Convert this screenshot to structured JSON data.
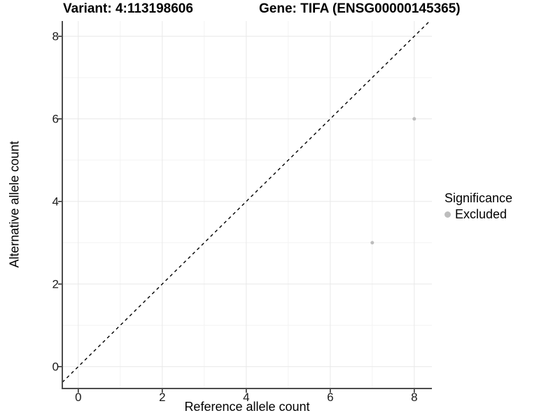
{
  "header": {
    "variant_title": "Variant: 4:113198606",
    "gene_title": "Gene: TIFA (ENSG00000145365)"
  },
  "axes": {
    "x": {
      "label": "Reference allele count"
    },
    "y": {
      "label": "Alternative allele count"
    }
  },
  "legend": {
    "title": "Significance",
    "items": [
      {
        "label": "Excluded",
        "color": "#bdbdbd"
      }
    ]
  },
  "colors": {
    "background": "#ffffff",
    "axis_line": "#4d4d4d",
    "tick_mark": "#333333",
    "grid_major": "#e8e8e8",
    "grid_minor": "#f3f3f3",
    "reference_line": "#000000",
    "point": "#bdbdbd"
  },
  "chart_data": {
    "type": "scatter",
    "title": "Variant: 4:113198606 | Gene: TIFA (ENSG00000145365)",
    "xlabel": "Reference allele count",
    "ylabel": "Alternative allele count",
    "xlim": [
      -0.38,
      8.42
    ],
    "ylim": [
      -0.53,
      8.37
    ],
    "x_ticks": [
      0,
      2,
      4,
      6,
      8
    ],
    "y_ticks": [
      0,
      2,
      4,
      6,
      8
    ],
    "grid": true,
    "legend_position": "right",
    "series": [
      {
        "name": "Excluded",
        "color": "#bdbdbd",
        "points": [
          {
            "x": 8,
            "y": 6
          },
          {
            "x": 7,
            "y": 3
          }
        ]
      }
    ],
    "reference_line": {
      "type": "identity y=x",
      "style": "dashed",
      "color": "#000000"
    }
  }
}
